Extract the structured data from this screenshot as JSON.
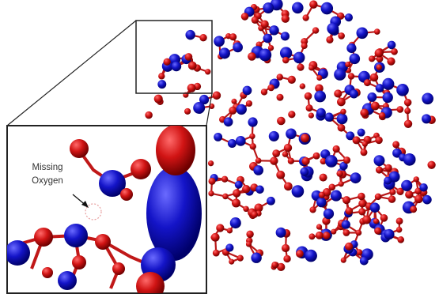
{
  "annotation": {
    "lines": [
      "Missing",
      "Oxygen"
    ]
  }
}
